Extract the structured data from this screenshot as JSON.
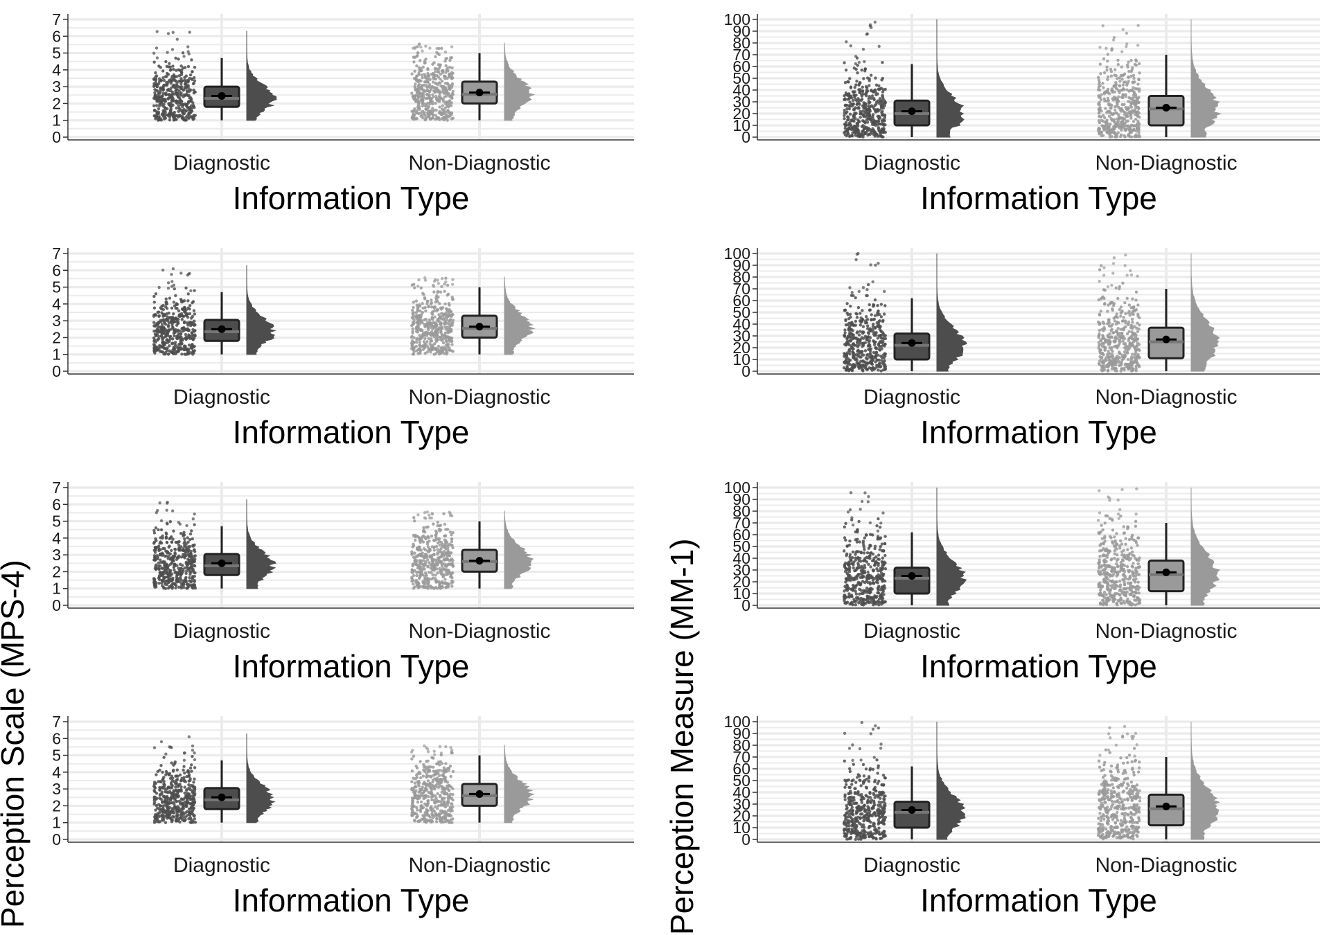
{
  "figure": {
    "left_column": {
      "ylabel": "Perception Scale (MPS-4)",
      "xlabel": "Information Type"
    },
    "right_column": {
      "ylabel": "Perception Measure (MM-1)",
      "xlabel": "Information Type"
    }
  },
  "colors": {
    "diagnostic": "#4d4d4d",
    "non_diagnostic": "#9a9a9a",
    "mean_point": "#000000",
    "grid": "#ebebeb",
    "axis": "#333333"
  },
  "chart_data": [
    {
      "type": "raincloud",
      "categories": [
        "Diagnostic",
        "Non-Diagnostic"
      ],
      "xlabel": "Information Type",
      "ylabel": "Perception Scale (MPS-4)",
      "ylim": [
        0,
        7
      ],
      "yticks": [
        0,
        1,
        2,
        3,
        4,
        5,
        6,
        7
      ],
      "grid": true,
      "series": [
        {
          "name": "Diagnostic",
          "whisker_low": 1.0,
          "q1": 1.8,
          "median": 2.3,
          "q3": 3.0,
          "whisker_high": 4.7,
          "mean": 2.45,
          "max": 6.3
        },
        {
          "name": "Non-Diagnostic",
          "whisker_low": 1.0,
          "q1": 2.0,
          "median": 2.55,
          "q3": 3.3,
          "whisker_high": 5.0,
          "mean": 2.65,
          "max": 5.6
        }
      ]
    },
    {
      "type": "raincloud",
      "categories": [
        "Diagnostic",
        "Non-Diagnostic"
      ],
      "xlabel": "Information Type",
      "ylabel": "Perception Measure (MM-1)",
      "ylim": [
        0,
        100
      ],
      "yticks": [
        0,
        10,
        20,
        30,
        40,
        50,
        60,
        70,
        80,
        90,
        100
      ],
      "grid": true,
      "series": [
        {
          "name": "Diagnostic",
          "whisker_low": 0,
          "q1": 10,
          "median": 20,
          "q3": 31,
          "whisker_high": 62,
          "mean": 22,
          "max": 100
        },
        {
          "name": "Non-Diagnostic",
          "whisker_low": 0,
          "q1": 10,
          "median": 24,
          "q3": 35,
          "whisker_high": 70,
          "mean": 25,
          "max": 100
        }
      ]
    },
    {
      "type": "raincloud",
      "categories": [
        "Diagnostic",
        "Non-Diagnostic"
      ],
      "xlabel": "Information Type",
      "ylabel": "Perception Scale (MPS-4)",
      "ylim": [
        0,
        7
      ],
      "yticks": [
        0,
        1,
        2,
        3,
        4,
        5,
        6,
        7
      ],
      "grid": true,
      "series": [
        {
          "name": "Diagnostic",
          "whisker_low": 1.0,
          "q1": 1.8,
          "median": 2.35,
          "q3": 3.05,
          "whisker_high": 4.7,
          "mean": 2.5,
          "max": 6.3
        },
        {
          "name": "Non-Diagnostic",
          "whisker_low": 1.0,
          "q1": 2.0,
          "median": 2.55,
          "q3": 3.3,
          "whisker_high": 5.0,
          "mean": 2.65,
          "max": 5.6
        }
      ]
    },
    {
      "type": "raincloud",
      "categories": [
        "Diagnostic",
        "Non-Diagnostic"
      ],
      "xlabel": "Information Type",
      "ylabel": "Perception Measure (MM-1)",
      "ylim": [
        0,
        100
      ],
      "yticks": [
        0,
        10,
        20,
        30,
        40,
        50,
        60,
        70,
        80,
        90,
        100
      ],
      "grid": true,
      "series": [
        {
          "name": "Diagnostic",
          "whisker_low": 0,
          "q1": 10,
          "median": 22,
          "q3": 32,
          "whisker_high": 62,
          "mean": 24,
          "max": 100
        },
        {
          "name": "Non-Diagnostic",
          "whisker_low": 0,
          "q1": 11,
          "median": 25,
          "q3": 37,
          "whisker_high": 70,
          "mean": 27,
          "max": 100
        }
      ]
    },
    {
      "type": "raincloud",
      "categories": [
        "Diagnostic",
        "Non-Diagnostic"
      ],
      "xlabel": "Information Type",
      "ylabel": "Perception Scale (MPS-4)",
      "ylim": [
        0,
        7
      ],
      "yticks": [
        0,
        1,
        2,
        3,
        4,
        5,
        6,
        7
      ],
      "grid": true,
      "series": [
        {
          "name": "Diagnostic",
          "whisker_low": 1.0,
          "q1": 1.8,
          "median": 2.35,
          "q3": 3.05,
          "whisker_high": 4.7,
          "mean": 2.5,
          "max": 6.3
        },
        {
          "name": "Non-Diagnostic",
          "whisker_low": 1.0,
          "q1": 2.0,
          "median": 2.6,
          "q3": 3.3,
          "whisker_high": 5.0,
          "mean": 2.65,
          "max": 5.6
        }
      ]
    },
    {
      "type": "raincloud",
      "categories": [
        "Diagnostic",
        "Non-Diagnostic"
      ],
      "xlabel": "Information Type",
      "ylabel": "Perception Measure (MM-1)",
      "ylim": [
        0,
        100
      ],
      "yticks": [
        0,
        10,
        20,
        30,
        40,
        50,
        60,
        70,
        80,
        90,
        100
      ],
      "grid": true,
      "series": [
        {
          "name": "Diagnostic",
          "whisker_low": 0,
          "q1": 10,
          "median": 23,
          "q3": 32,
          "whisker_high": 62,
          "mean": 25,
          "max": 100
        },
        {
          "name": "Non-Diagnostic",
          "whisker_low": 0,
          "q1": 12,
          "median": 26,
          "q3": 38,
          "whisker_high": 70,
          "mean": 28,
          "max": 100
        }
      ]
    },
    {
      "type": "raincloud",
      "categories": [
        "Diagnostic",
        "Non-Diagnostic"
      ],
      "xlabel": "Information Type",
      "ylabel": "Perception Scale (MPS-4)",
      "ylim": [
        0,
        7
      ],
      "yticks": [
        0,
        1,
        2,
        3,
        4,
        5,
        6,
        7
      ],
      "grid": true,
      "series": [
        {
          "name": "Diagnostic",
          "whisker_low": 1.0,
          "q1": 1.8,
          "median": 2.35,
          "q3": 3.05,
          "whisker_high": 4.7,
          "mean": 2.5,
          "max": 6.3
        },
        {
          "name": "Non-Diagnostic",
          "whisker_low": 1.0,
          "q1": 2.0,
          "median": 2.6,
          "q3": 3.3,
          "whisker_high": 5.0,
          "mean": 2.7,
          "max": 5.6
        }
      ]
    },
    {
      "type": "raincloud",
      "categories": [
        "Diagnostic",
        "Non-Diagnostic"
      ],
      "xlabel": "Information Type",
      "ylabel": "Perception Measure (MM-1)",
      "ylim": [
        0,
        100
      ],
      "yticks": [
        0,
        10,
        20,
        30,
        40,
        50,
        60,
        70,
        80,
        90,
        100
      ],
      "grid": true,
      "series": [
        {
          "name": "Diagnostic",
          "whisker_low": 0,
          "q1": 10,
          "median": 23,
          "q3": 32,
          "whisker_high": 62,
          "mean": 25,
          "max": 100
        },
        {
          "name": "Non-Diagnostic",
          "whisker_low": 0,
          "q1": 12,
          "median": 26,
          "q3": 38,
          "whisker_high": 70,
          "mean": 28,
          "max": 100
        }
      ]
    }
  ]
}
